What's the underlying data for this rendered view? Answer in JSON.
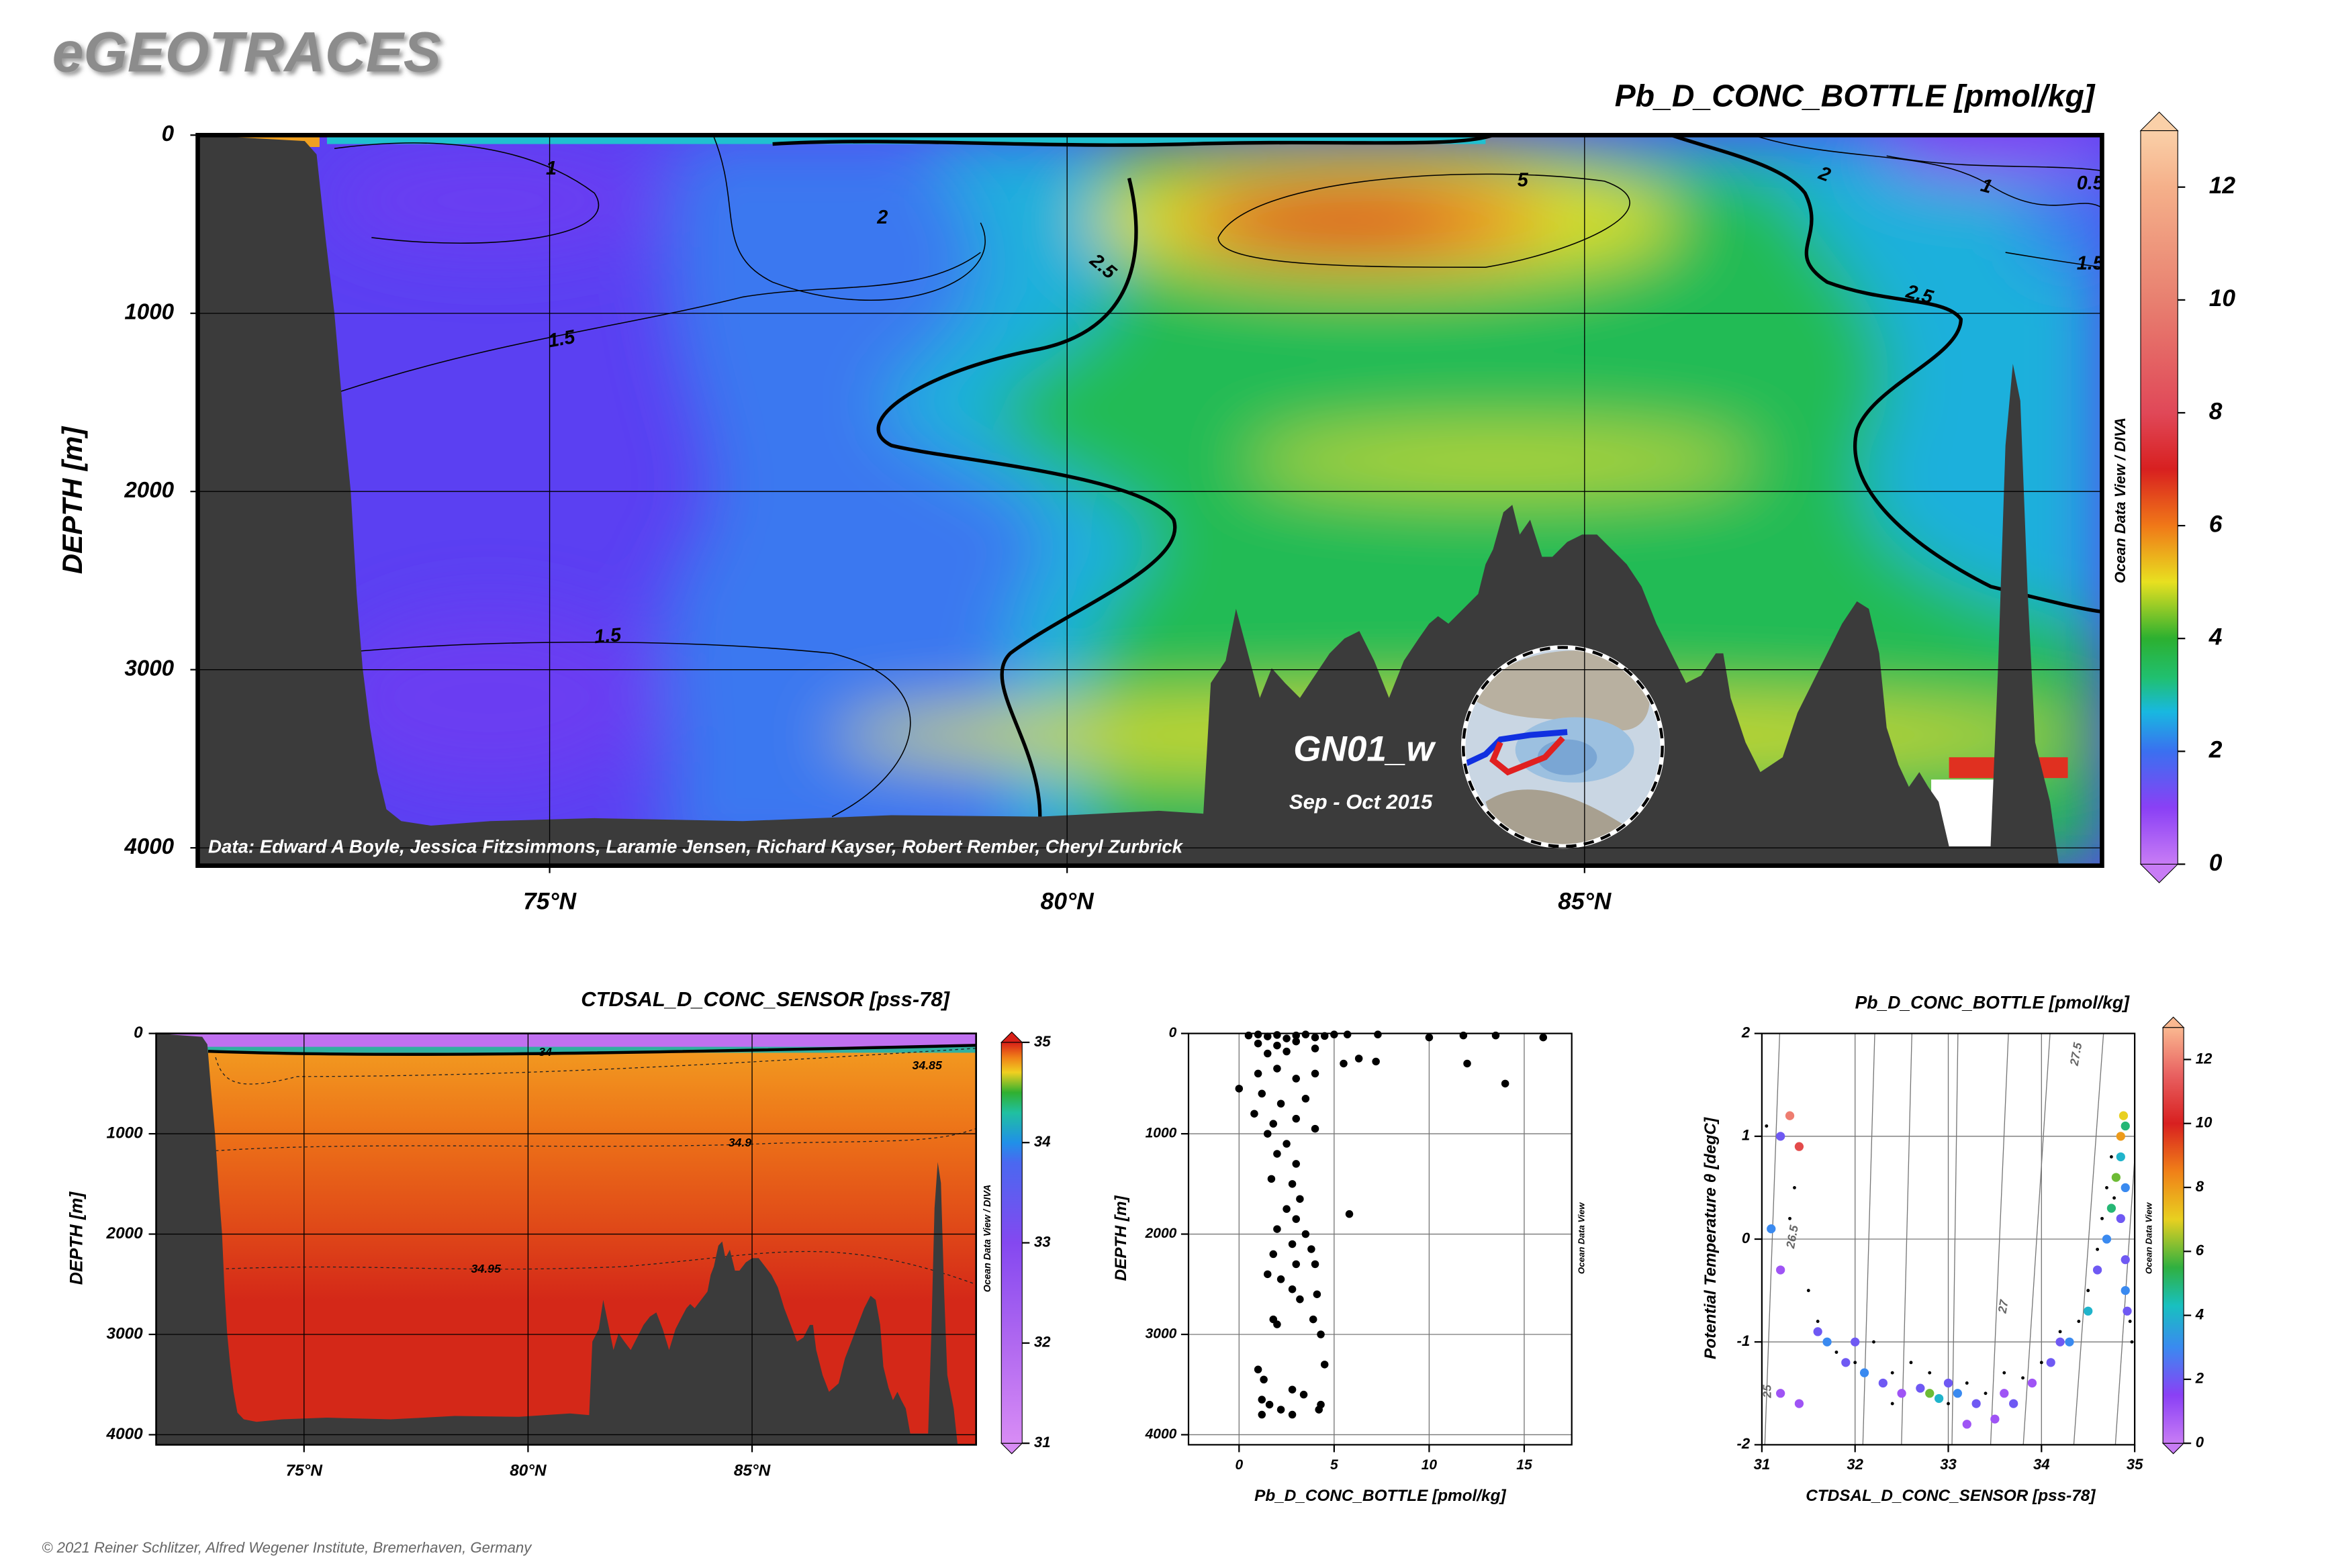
{
  "header": {
    "title": "eGEOTRACES"
  },
  "footer": "© 2021 Reiner Schlitzer, Alfred Wegener Institute, Bremerhaven, Germany",
  "chart_data": [
    {
      "type": "section",
      "title": "Pb_D_CONC_BOTTLE [pmol/kg]",
      "ylabel": "DEPTH [m]",
      "xlim": [
        71.6,
        90
      ],
      "xticks": [
        {
          "value": 75,
          "label": "75°N"
        },
        {
          "value": 80,
          "label": "80°N"
        },
        {
          "value": 85,
          "label": "85°N"
        }
      ],
      "ylim": [
        0,
        4100
      ],
      "y_reversed": true,
      "yticks": [
        0,
        1000,
        2000,
        3000,
        4000
      ],
      "grid": true,
      "colorbar": {
        "lim": [
          0,
          13
        ],
        "ticks": [
          0,
          2,
          4,
          6,
          8,
          10,
          12
        ],
        "stops": [
          [
            0,
            "#c87cf5"
          ],
          [
            1,
            "#8a40f5"
          ],
          [
            2,
            "#3a70f0"
          ],
          [
            2.7,
            "#18b8e0"
          ],
          [
            3.3,
            "#20c070"
          ],
          [
            4,
            "#2cb030"
          ],
          [
            5,
            "#e8e020"
          ],
          [
            6,
            "#f07818"
          ],
          [
            7,
            "#d82020"
          ],
          [
            8,
            "#e04858"
          ],
          [
            10,
            "#e88070"
          ],
          [
            12,
            "#f5b08a"
          ],
          [
            13,
            "#fad0a8"
          ]
        ]
      },
      "contour_labels": [
        1,
        2,
        2.5,
        5,
        1.5,
        1.5,
        2,
        1,
        0.5,
        1.5,
        2.5
      ],
      "annotations": {
        "station": "GN01_w",
        "period": "Sep - Oct 2015",
        "credit": "Data: Edward A Boyle, Jessica Fitzsimmons, Laramie Jensen, Richard Kayser, Robert Rember, Cheryl Zurbrick",
        "watermark": "Ocean Data View / DIVA"
      }
    },
    {
      "type": "section",
      "title": "CTDSAL_D_CONC_SENSOR [pss-78]",
      "ylabel": "DEPTH [m]",
      "xlim": [
        71.7,
        90
      ],
      "xticks": [
        {
          "value": 75,
          "label": "75°N"
        },
        {
          "value": 80,
          "label": "80°N"
        },
        {
          "value": 85,
          "label": "85°N"
        }
      ],
      "ylim": [
        0,
        4100
      ],
      "y_reversed": true,
      "yticks": [
        0,
        1000,
        2000,
        3000,
        4000
      ],
      "grid": true,
      "colorbar": {
        "lim": [
          31,
          35
        ],
        "ticks": [
          31,
          32,
          33,
          34,
          35
        ],
        "stops": [
          [
            31,
            "#d88cf5"
          ],
          [
            32,
            "#b068f0"
          ],
          [
            33,
            "#8448f0"
          ],
          [
            33.8,
            "#4a68f0"
          ],
          [
            34,
            "#2090e8"
          ],
          [
            34.3,
            "#20c0a0"
          ],
          [
            34.5,
            "#30b030"
          ],
          [
            34.7,
            "#f0d020"
          ],
          [
            34.85,
            "#f08018"
          ],
          [
            35,
            "#d82018"
          ]
        ]
      },
      "contour_labels": [
        34,
        34.85,
        34.9,
        34.95
      ],
      "annotations": {
        "watermark": "Ocean Data View / DIVA"
      }
    },
    {
      "type": "scatter",
      "xlabel": "Pb_D_CONC_BOTTLE [pmol/kg]",
      "ylabel": "DEPTH [m]",
      "xlim": [
        -2.66,
        17.5
      ],
      "xticks": [
        0,
        5,
        10,
        15
      ],
      "ylim": [
        0,
        4100
      ],
      "y_reversed": true,
      "yticks": [
        0,
        1000,
        2000,
        3000,
        4000
      ],
      "grid": true,
      "series": [
        {
          "color": "#000000",
          "x": [
            0.5,
            1,
            1.5,
            2,
            2.5,
            3,
            3.5,
            4,
            4.5,
            5,
            5.7,
            7.3,
            10,
            11.8,
            13.5,
            16,
            1,
            2,
            3,
            1.5,
            2.5,
            4,
            5.5,
            6.3,
            7.2,
            12,
            14,
            0,
            1,
            2,
            3,
            4,
            1.2,
            2.2,
            3.5,
            0.8,
            1.8,
            3,
            1.5,
            2.5,
            4,
            2,
            3,
            1.7,
            2.8,
            3.2,
            2.5,
            3,
            2,
            5.8,
            3.5,
            2.8,
            3.8,
            1.8,
            3,
            4,
            1.5,
            2.2,
            2.8,
            4.1,
            3.2,
            1.8,
            2,
            3.9,
            4.3,
            1,
            1.3,
            4.5,
            2.8,
            3.4,
            1.2,
            1.6,
            4.3,
            1.2,
            2.2,
            4.2,
            2.8
          ],
          "values": [
            20,
            10,
            30,
            15,
            50,
            20,
            10,
            40,
            25,
            10,
            10,
            10,
            40,
            20,
            20,
            40,
            100,
            120,
            80,
            200,
            180,
            150,
            300,
            250,
            280,
            300,
            500,
            550,
            400,
            350,
            450,
            400,
            600,
            700,
            650,
            800,
            900,
            850,
            1000,
            1100,
            950,
            1200,
            1300,
            1450,
            1500,
            1650,
            1750,
            1850,
            1950,
            1800,
            2000,
            2100,
            2150,
            2200,
            2300,
            2300,
            2400,
            2450,
            2550,
            2600,
            2650,
            2850,
            2900,
            2850,
            3000,
            3350,
            3450,
            3300,
            3550,
            3600,
            3650,
            3700,
            3700,
            3800,
            3750,
            3750,
            3800
          ]
        }
      ],
      "annotations": {
        "watermark": "Ocean Data View"
      }
    },
    {
      "type": "scatter",
      "title": "Pb_D_CONC_BOTTLE [pmol/kg]",
      "xlabel": "CTDSAL_D_CONC_SENSOR [pss-78]",
      "ylabel": "Potential Temperature θ [degC]",
      "xlim": [
        31,
        35
      ],
      "xticks": [
        31,
        32,
        33,
        34,
        35
      ],
      "ylim": [
        -2,
        2
      ],
      "yticks": [
        -2,
        -1,
        0,
        1,
        2
      ],
      "grid": true,
      "colorbar": {
        "lim": [
          0,
          13
        ],
        "ticks": [
          0,
          2,
          4,
          6,
          8,
          10,
          12
        ],
        "stops": [
          [
            0,
            "#c87cf5"
          ],
          [
            1.5,
            "#8a40f5"
          ],
          [
            3,
            "#3a8af0"
          ],
          [
            4.3,
            "#18c0c0"
          ],
          [
            5.5,
            "#30b040"
          ],
          [
            7,
            "#e8d020"
          ],
          [
            8.5,
            "#f08018"
          ],
          [
            10,
            "#d82020"
          ],
          [
            11.5,
            "#e86060"
          ],
          [
            13,
            "#fab890"
          ]
        ]
      },
      "isopycnal_labels": [
        25,
        26.5,
        27,
        27.5
      ],
      "series": [
        {
          "x": [
            31.3,
            31.4,
            31.2,
            31.1,
            31.2,
            31.6,
            31.7,
            31.2,
            31.4,
            31.9,
            32.1,
            32.3,
            32.5,
            32.7,
            32.8,
            32.9,
            33.0,
            33.1,
            33.3,
            33.5,
            33.7,
            33.9,
            34.1,
            34.3,
            34.5,
            34.6,
            34.7,
            34.75,
            34.8,
            34.85,
            34.85,
            34.88,
            34.9,
            34.9,
            34.92,
            34.9,
            34.85,
            33.2,
            32.0,
            33.6,
            34.2,
            34.9
          ],
          "values": [
            1.2,
            0.9,
            1.0,
            0.1,
            -0.3,
            -0.9,
            -1.0,
            -1.5,
            -1.6,
            -1.2,
            -1.3,
            -1.4,
            -1.5,
            -1.45,
            -1.5,
            -1.55,
            -1.4,
            -1.5,
            -1.6,
            -1.75,
            -1.6,
            -1.4,
            -1.2,
            -1.0,
            -0.7,
            -0.3,
            0.0,
            0.3,
            0.6,
            0.8,
            1.0,
            1.2,
            -0.2,
            -0.5,
            -0.7,
            0.5,
            0.2,
            -1.8,
            -1.0,
            -1.5,
            -1.0,
            1.1
          ],
          "color_values": [
            12,
            11,
            2,
            3,
            1,
            2,
            3,
            1,
            1,
            2,
            3,
            2,
            1,
            2,
            6,
            4,
            2,
            3,
            2,
            1,
            2,
            1,
            2,
            3,
            4,
            2,
            3,
            5,
            6,
            4,
            8,
            7,
            2,
            3,
            2,
            3,
            2,
            1,
            2,
            1,
            2,
            5
          ]
        },
        {
          "color": "#000000",
          "x": [
            31.05,
            31.3,
            31.5,
            31.6,
            31.8,
            32.0,
            32.2,
            32.4,
            32.6,
            32.8,
            33.0,
            33.2,
            33.4,
            33.6,
            33.8,
            34.0,
            34.2,
            34.4,
            34.5,
            34.6,
            34.65,
            34.7,
            34.75,
            34.78,
            31.35,
            32.4,
            34.95,
            34.97
          ],
          "values": [
            1.1,
            0.2,
            -0.5,
            -0.8,
            -1.1,
            -1.2,
            -1.0,
            -1.3,
            -1.2,
            -1.3,
            -1.6,
            -1.4,
            -1.5,
            -1.3,
            -1.35,
            -1.2,
            -0.9,
            -0.8,
            -0.5,
            -0.1,
            0.2,
            0.5,
            0.8,
            0.4,
            0.5,
            -1.6,
            -0.8,
            -1.0
          ]
        }
      ],
      "annotations": {
        "watermark": "Ocean Data View"
      }
    }
  ]
}
